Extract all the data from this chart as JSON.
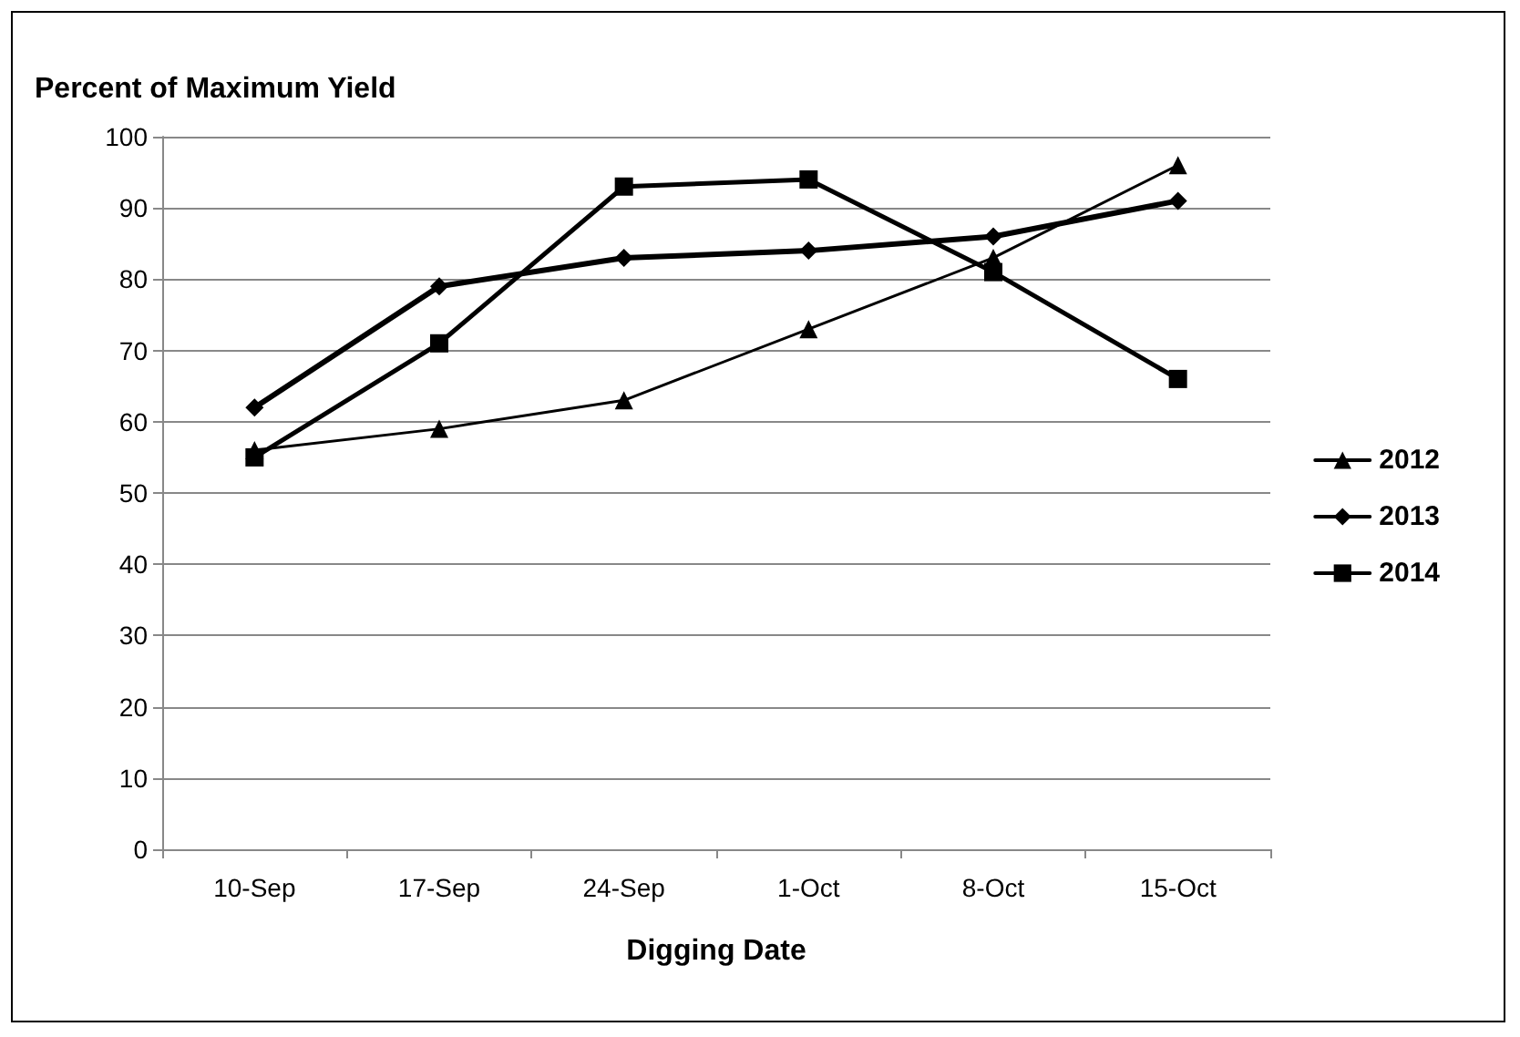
{
  "chart_data": {
    "type": "line",
    "ylabel": "Percent of Maximum Yield",
    "xlabel": "Digging Date",
    "categories": [
      "10-Sep",
      "17-Sep",
      "24-Sep",
      "1-Oct",
      "8-Oct",
      "15-Oct"
    ],
    "series": [
      {
        "name": "2012",
        "color": "#000000",
        "marker": "triangle",
        "values": [
          56,
          59,
          63,
          73,
          83,
          96
        ]
      },
      {
        "name": "2013",
        "color": "#000000",
        "marker": "diamond",
        "values": [
          62,
          79,
          83,
          84,
          86,
          91
        ]
      },
      {
        "name": "2014",
        "color": "#000000",
        "marker": "square",
        "values": [
          55,
          71,
          93,
          94,
          81,
          66
        ]
      }
    ],
    "ylim": [
      0,
      100
    ],
    "yticks": [
      0,
      10,
      20,
      30,
      40,
      50,
      60,
      70,
      80,
      90,
      100
    ],
    "grid": "y",
    "legend": "right",
    "line_style": "solid"
  }
}
